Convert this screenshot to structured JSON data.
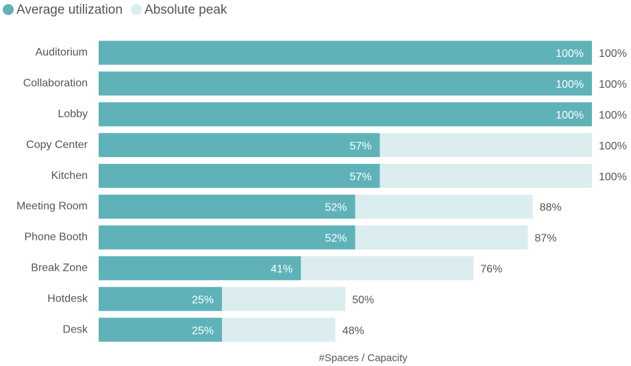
{
  "chart_data": {
    "type": "bar",
    "orientation": "horizontal",
    "overlap": true,
    "x_label": "#Spaces / Capacity",
    "categories": [
      "Auditorium",
      "Collaboration",
      "Lobby",
      "Copy Center",
      "Kitchen",
      "Meeting Room",
      "Phone Booth",
      "Break Zone",
      "Hotdesk",
      "Desk"
    ],
    "xlim": [
      0,
      100
    ],
    "legend": "top-left",
    "series": [
      {
        "name": "Absolute peak",
        "color": "#dbedef",
        "values": [
          100,
          100,
          100,
          100,
          100,
          88,
          87,
          76,
          50,
          48
        ],
        "value_labels": [
          "100%",
          "100%",
          "100%",
          "100%",
          "100%",
          "88%",
          "87%",
          "76%",
          "50%",
          "48%"
        ]
      },
      {
        "name": "Average utilization",
        "color": "#5fb3b8",
        "values": [
          100,
          100,
          100,
          57,
          57,
          52,
          52,
          41,
          25,
          25
        ],
        "value_labels": [
          "100%",
          "100%",
          "100%",
          "57%",
          "57%",
          "52%",
          "52%",
          "41%",
          "25%",
          "25%"
        ]
      }
    ]
  }
}
